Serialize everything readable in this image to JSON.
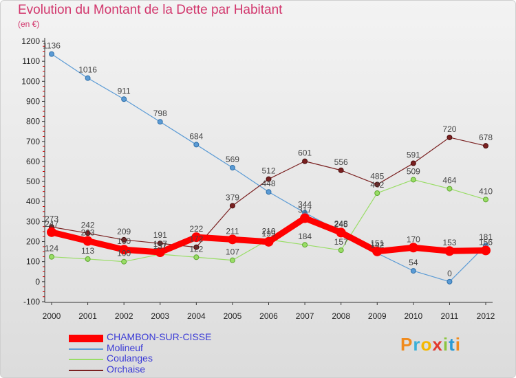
{
  "chart_data": {
    "type": "line",
    "title": "Evolution du Montant de la Dette par Habitant",
    "subtitle": "(en €)",
    "xlabel": "",
    "ylabel": "",
    "x": [
      "2000",
      "2001",
      "2002",
      "2003",
      "2004",
      "2005",
      "2006",
      "2007",
      "2008",
      "2009",
      "2010",
      "2011",
      "2012"
    ],
    "ylim": [
      -100,
      1200
    ],
    "yticks": [
      "-100",
      "0",
      "100",
      "200",
      "300",
      "400",
      "500",
      "600",
      "700",
      "800",
      "900",
      "1000",
      "1100",
      "1200"
    ],
    "grid": false,
    "legend": "bottom-left",
    "series": [
      {
        "name": "CHAMBON-SUR-CISSE",
        "color": "#ff0000",
        "values": [
          247,
          203,
          160,
          147,
          222,
          211,
          199,
          317,
          245,
          151,
          170,
          153,
          156
        ],
        "labels": [
          "247",
          "203",
          "160",
          "147",
          "222",
          "211",
          "199",
          "317",
          "245",
          "151",
          "170",
          "153",
          "156"
        ]
      },
      {
        "name": "Molineuf",
        "color": "#5b9bd5",
        "values": [
          1136,
          1016,
          911,
          798,
          684,
          569,
          448,
          344,
          248,
          142,
          54,
          0,
          181
        ],
        "labels": [
          "1136",
          "1016",
          "911",
          "798",
          "684",
          "569",
          "448",
          "344",
          "248",
          "142",
          "54",
          "0",
          "181"
        ]
      },
      {
        "name": "Coulanges",
        "color": "#99dd66",
        "values": [
          124,
          113,
          100,
          137,
          122,
          107,
          210,
          184,
          157,
          442,
          509,
          464,
          410
        ],
        "labels": [
          "124",
          "113",
          "100",
          "137",
          "122",
          "107",
          "210",
          "184",
          "157",
          "442",
          "509",
          "464",
          "410"
        ]
      },
      {
        "name": "Orchaise",
        "color": "#7a2020",
        "values": [
          273,
          242,
          209,
          191,
          172,
          379,
          512,
          601,
          556,
          485,
          591,
          720,
          678
        ],
        "labels": [
          "273",
          "242",
          "209",
          "191",
          "172",
          "379",
          "512",
          "601",
          "556",
          "485",
          "591",
          "720",
          "678"
        ]
      }
    ]
  },
  "logo_text": "Proxiti"
}
